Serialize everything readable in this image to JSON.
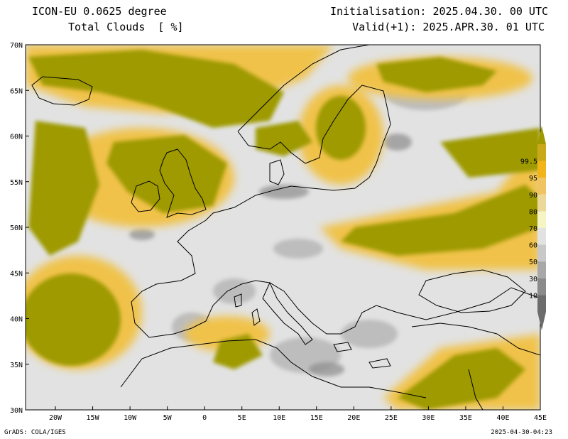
{
  "header": {
    "model": "ICON-EU 0.0625 degree",
    "field": "Total Clouds  [ %]",
    "initialisation": "Initialisation: 2025.04.30. 00 UTC",
    "valid": "Valid(+1): 2025.APR.30. 01 UTC"
  },
  "map": {
    "lon_range": [
      -24,
      45
    ],
    "lat_range": [
      30,
      70
    ],
    "lat_ticks": [
      {
        "value": 70,
        "label": "70N"
      },
      {
        "value": 65,
        "label": "65N"
      },
      {
        "value": 60,
        "label": "60N"
      },
      {
        "value": 55,
        "label": "55N"
      },
      {
        "value": 50,
        "label": "50N"
      },
      {
        "value": 45,
        "label": "45N"
      },
      {
        "value": 40,
        "label": "40N"
      },
      {
        "value": 35,
        "label": "35N"
      },
      {
        "value": 30,
        "label": "30N"
      }
    ],
    "lon_ticks": [
      {
        "value": -20,
        "label": "20W"
      },
      {
        "value": -15,
        "label": "15W"
      },
      {
        "value": -10,
        "label": "10W"
      },
      {
        "value": -5,
        "label": "5W"
      },
      {
        "value": 0,
        "label": "0"
      },
      {
        "value": 5,
        "label": "5E"
      },
      {
        "value": 10,
        "label": "10E"
      },
      {
        "value": 15,
        "label": "15E"
      },
      {
        "value": 20,
        "label": "20E"
      },
      {
        "value": 25,
        "label": "25E"
      },
      {
        "value": 30,
        "label": "30E"
      },
      {
        "value": 35,
        "label": "35E"
      },
      {
        "value": 40,
        "label": "40E"
      },
      {
        "value": 45,
        "label": "45E"
      }
    ],
    "background_color": "#e2e2e2",
    "coastline_color": "#000000"
  },
  "colorbar": {
    "levels": [
      {
        "label": "99.5",
        "color": "#c9a81a"
      },
      {
        "label": "95",
        "color": "#f2b418"
      },
      {
        "label": "90",
        "color": "#f0c460"
      },
      {
        "label": "80",
        "color": "#ecd99a"
      },
      {
        "label": "70",
        "color": "#f4f4c4"
      },
      {
        "label": "60",
        "color": "#e2e2e2"
      },
      {
        "label": "50",
        "color": "#c8c8c8"
      },
      {
        "label": "30",
        "color": "#a8a8a8"
      },
      {
        "label": "10",
        "color": "#8a8a8a"
      },
      {
        "label": "",
        "color": "#6c6c6c"
      }
    ],
    "top_color": "#9e9a00"
  },
  "footer": {
    "left": "GrADS: COLA/IGES",
    "right": "2025-04-30-04:23"
  }
}
